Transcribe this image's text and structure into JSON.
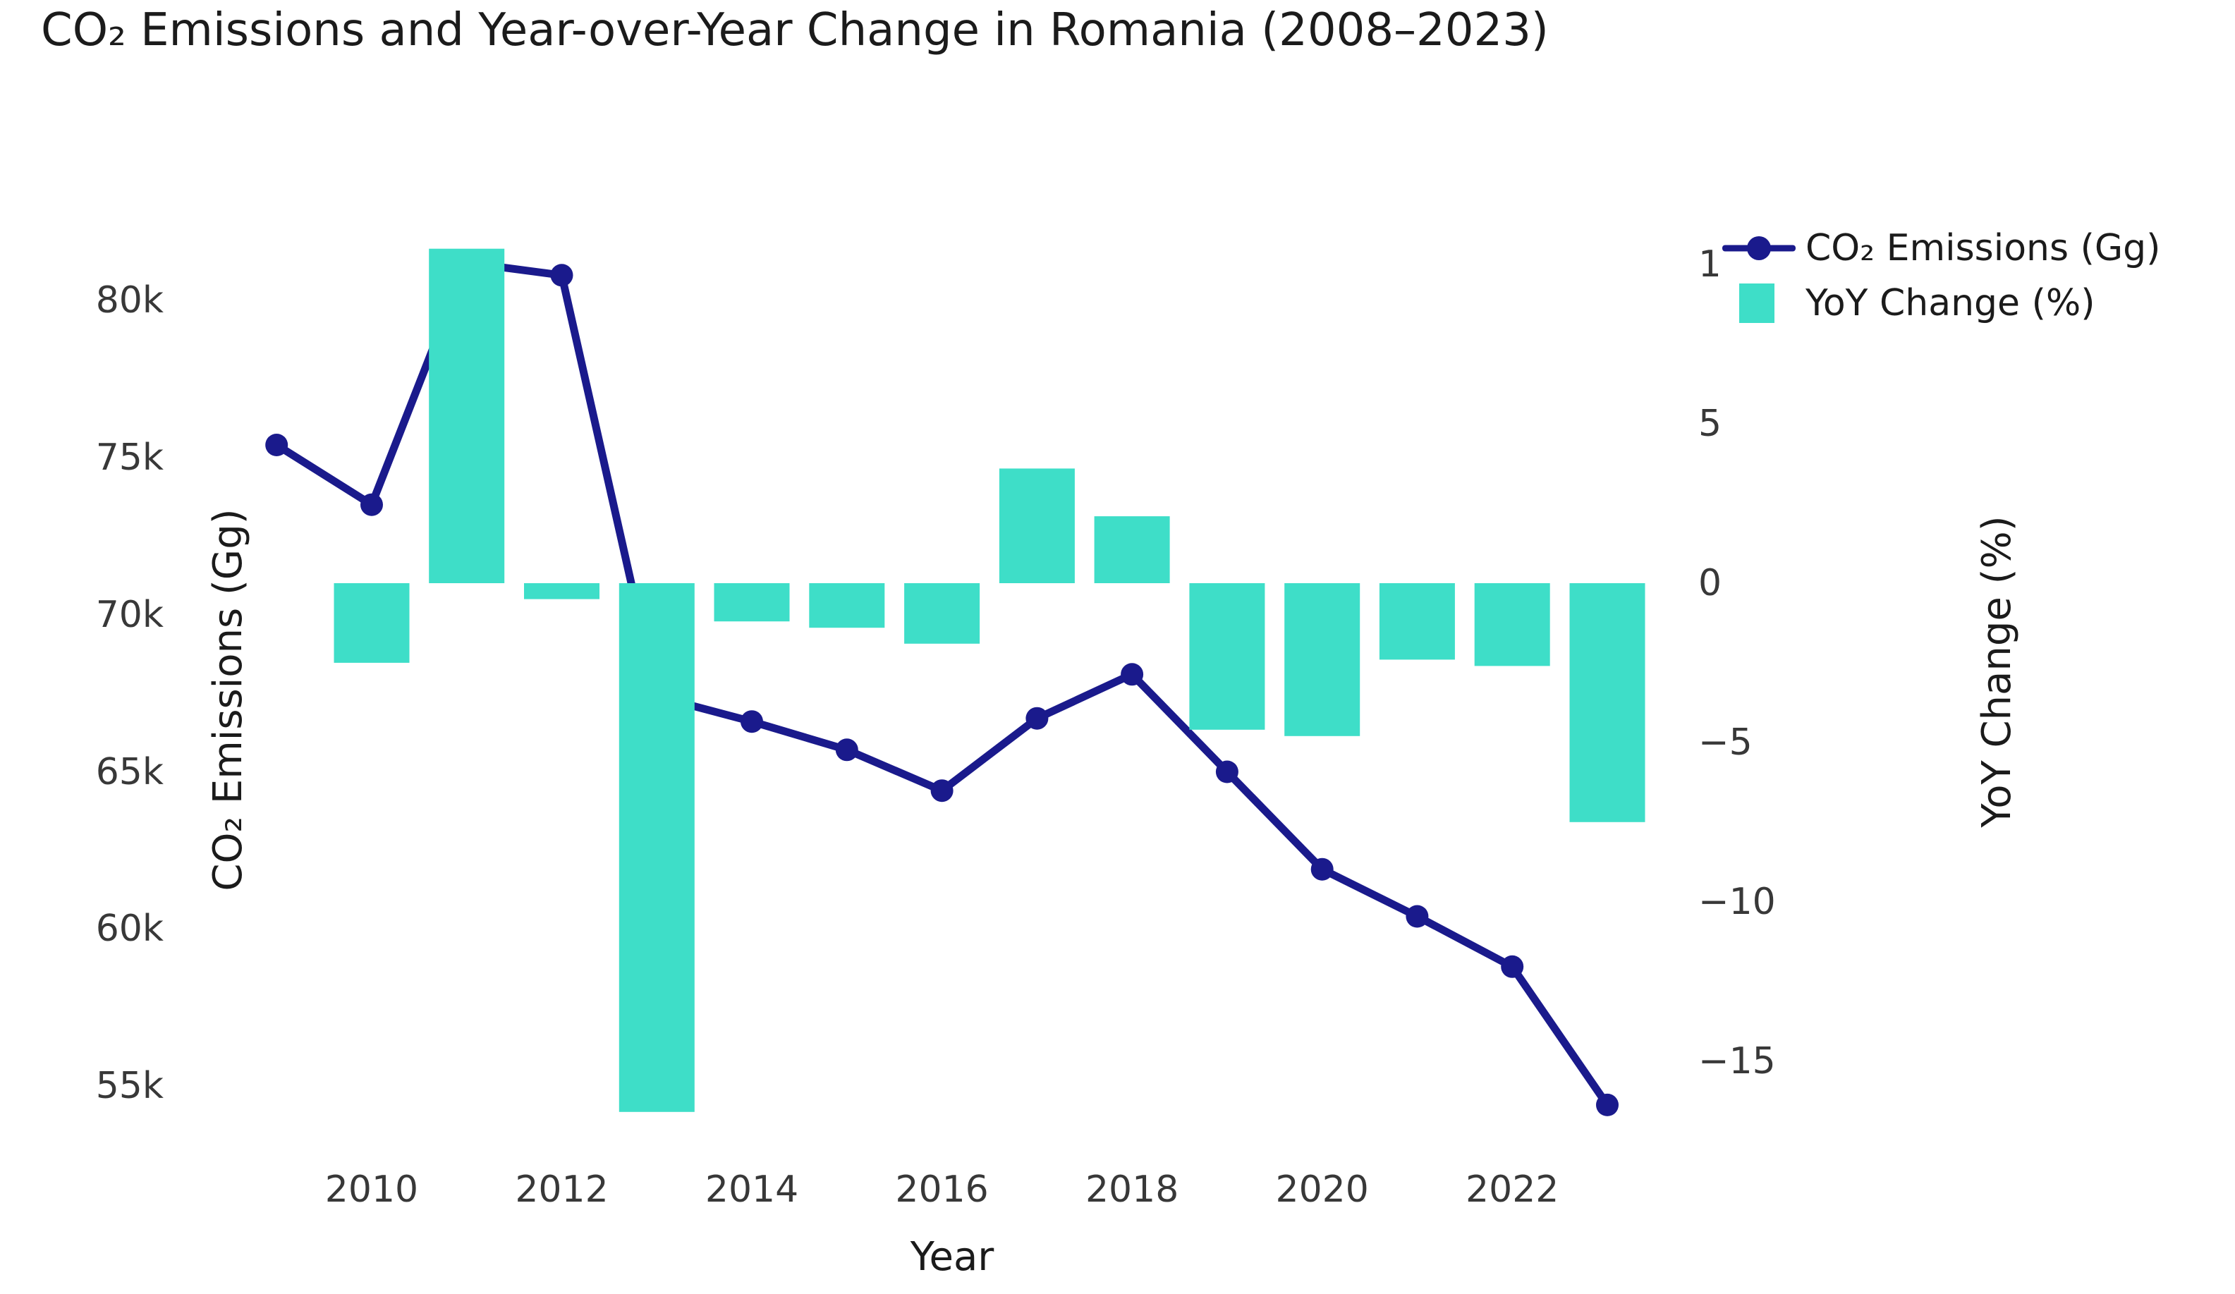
{
  "title": "CO₂ Emissions and Year-over-Year Change in Romania (2008–2023)",
  "axes": {
    "x_label": "Year",
    "y_left_label": "CO₂ Emissions (Gg)",
    "y_right_label": "YoY Change (%)",
    "x_tick_labels": [
      "2010",
      "2012",
      "2014",
      "2016",
      "2018",
      "2020",
      "2022"
    ],
    "x_tick_years": [
      2010,
      2012,
      2014,
      2016,
      2018,
      2020,
      2022
    ],
    "y_left_tick_labels": [
      "80k",
      "75k",
      "70k",
      "65k",
      "60k",
      "55k"
    ],
    "y_left_tick_values": [
      80000,
      75000,
      70000,
      65000,
      60000,
      55000
    ],
    "y_right_tick_labels": [
      "10",
      "5",
      "0",
      "−5",
      "−10",
      "−15"
    ],
    "y_right_tick_values": [
      10,
      5,
      0,
      -5,
      -10,
      -15
    ]
  },
  "legend": {
    "items": [
      {
        "label": "CO₂ Emissions (Gg)",
        "type": "line"
      },
      {
        "label": "YoY Change (%)",
        "type": "bar"
      }
    ]
  },
  "colors": {
    "line": "#1A1A8C",
    "bar": "#3EDEC8",
    "text_dark": "#1b1b1b",
    "tick_text": "#383838",
    "background": "#ffffff"
  },
  "chart_data": {
    "type": "line+bar",
    "title": "CO₂ Emissions and Year-over-Year Change in Romania (2008–2023)",
    "xlabel": "Year",
    "ylabel_left": "CO₂ Emissions (Gg)",
    "ylabel_right": "YoY Change (%)",
    "ylim_left": [
      53000,
      82500
    ],
    "ylim_right": [
      -18.5,
      10.5
    ],
    "grid": false,
    "legend_position": "top-right",
    "series": [
      {
        "name": "CO₂ Emissions (Gg)",
        "type": "line",
        "axis": "left",
        "years": [
          2009,
          2010,
          2011,
          2012,
          2013,
          2014,
          2015,
          2016,
          2017,
          2018,
          2019,
          2020,
          2021,
          2022,
          2023
        ],
        "values": [
          75400,
          73500,
          81200,
          80800,
          67400,
          66600,
          65700,
          64400,
          66700,
          68100,
          65000,
          61900,
          60400,
          58800,
          54400
        ]
      },
      {
        "name": "YoY Change (%)",
        "type": "bar",
        "axis": "right",
        "years": [
          2010,
          2011,
          2012,
          2013,
          2014,
          2015,
          2016,
          2017,
          2018,
          2019,
          2020,
          2021,
          2022,
          2023
        ],
        "values": [
          -2.5,
          10.5,
          -0.5,
          -16.6,
          -1.2,
          -1.4,
          -1.9,
          3.6,
          2.1,
          -4.6,
          -4.8,
          -2.4,
          -2.6,
          -7.5
        ]
      }
    ]
  }
}
